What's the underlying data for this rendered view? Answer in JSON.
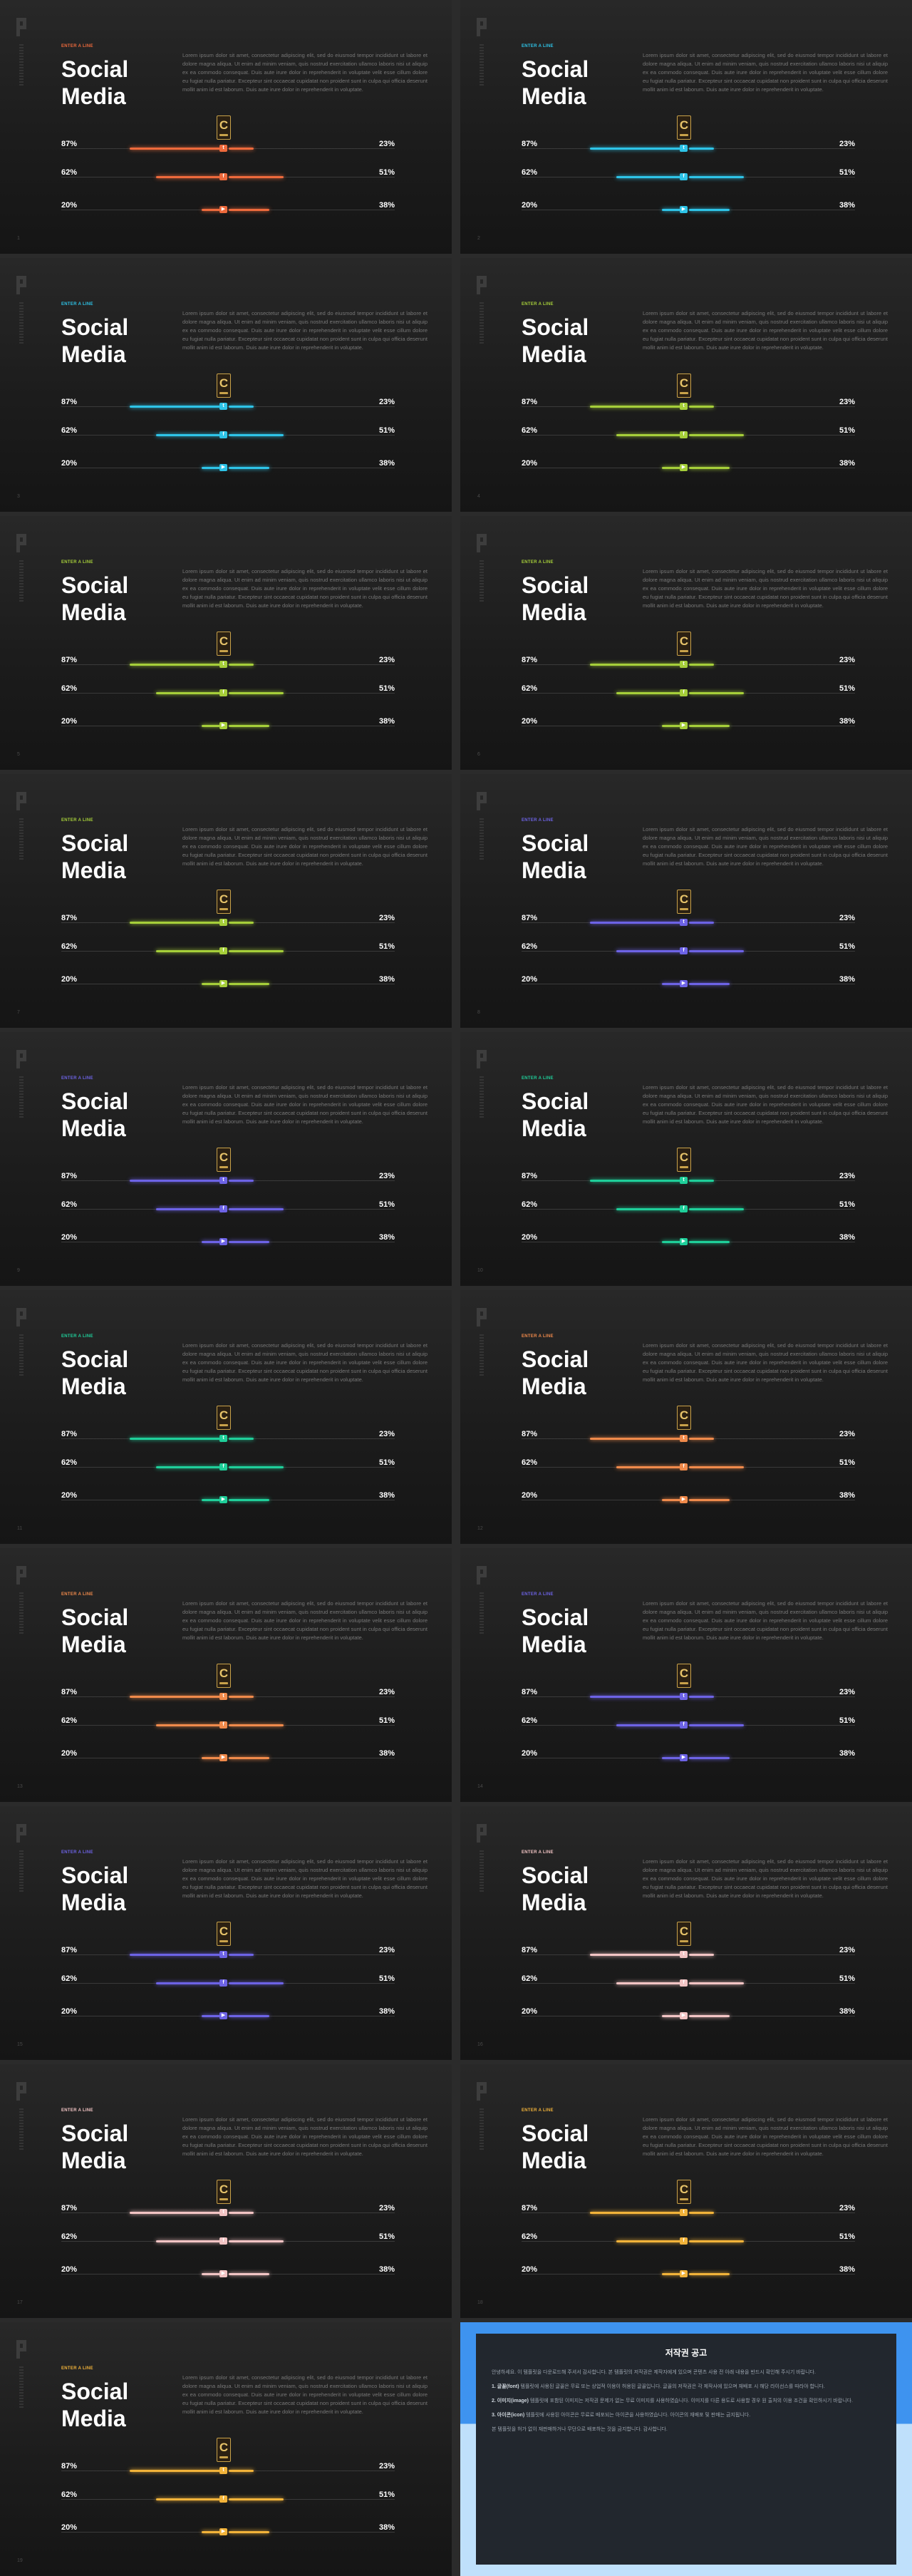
{
  "slide": {
    "category_label": "ENTER A LINE",
    "title_line1": "Social",
    "title_line2": "Media",
    "body": "Lorem ipsum dolor sit amet, consectetur adipiscing elit, sed do eiusmod tempor incididunt ut labore et dolore magna aliqua. Ut enim ad minim veniam, quis nostrud exercitation ullamco laboris nisi ut aliquip ex ea commodo consequat. Duis aute irure dolor in reprehenderit in voluptate velit esse cillum dolore eu fugiat nulla pariatur. Excepteur sint occaecat cupidatat non proident sunt in culpa qui officia deserunt mollit anim id est laborum. Duis aute irure dolor in reprehenderit in voluptate.",
    "crest_letter": "C",
    "rows": [
      {
        "left": "87%",
        "right": "23%",
        "left_share": 0.87,
        "right_share": 0.23,
        "icon": "twitter-icon",
        "glyph": "t"
      },
      {
        "left": "62%",
        "right": "51%",
        "left_share": 0.62,
        "right_share": 0.51,
        "icon": "facebook-icon",
        "glyph": "f"
      },
      {
        "left": "20%",
        "right": "38%",
        "left_share": 0.2,
        "right_share": 0.38,
        "icon": "youtube-icon",
        "glyph": "▶"
      }
    ]
  },
  "slides": [
    {
      "accent": "#ee6a3c",
      "page": "1"
    },
    {
      "accent": "#2ec4e8",
      "page": "2"
    },
    {
      "accent": "#2ec4e8",
      "page": "3"
    },
    {
      "accent": "#a6cf3a",
      "page": "4"
    },
    {
      "accent": "#a6cf3a",
      "page": "5"
    },
    {
      "accent": "#a6cf3a",
      "page": "6"
    },
    {
      "accent": "#a6cf3a",
      "page": "7"
    },
    {
      "accent": "#6d63e6",
      "page": "8"
    },
    {
      "accent": "#6d63e6",
      "page": "9"
    },
    {
      "accent": "#1fcf9a",
      "page": "10"
    },
    {
      "accent": "#1fcf9a",
      "page": "11"
    },
    {
      "accent": "#f08a4b",
      "page": "12"
    },
    {
      "accent": "#f08a4b",
      "page": "13"
    },
    {
      "accent": "#6d63e6",
      "page": "14"
    },
    {
      "accent": "#6d63e6",
      "page": "15"
    },
    {
      "accent": "#f2c4c4",
      "page": "16"
    },
    {
      "accent": "#f2c4c4",
      "page": "17"
    },
    {
      "accent": "#f2b33a",
      "page": "18"
    },
    {
      "accent": "#f2b33a",
      "page": "19"
    }
  ],
  "notice": {
    "title": "저작권 공고",
    "intro": "안녕하세요. 이 템플릿을 다운로드해 주셔서 감사합니다. 본 템플릿의 저작권은 제작자에게 있으며 콘텐츠 사용 전 아래 내용을 반드시 확인해 주시기 바랍니다.",
    "item1_head": "1. 글꼴(font)",
    "item1_body": "템플릿에 사용된 글꼴은 무료 또는 상업적 이용이 허용된 글꼴입니다. 글꼴의 저작권은 각 제작사에 있으며 재배포 시 해당 라이선스를 따라야 합니다.",
    "item2_head": "2. 이미지(image)",
    "item2_body": "템플릿에 포함된 이미지는 저작권 문제가 없는 무료 이미지를 사용하였습니다. 이미지를 다른 용도로 사용할 경우 원 출처의 이용 조건을 확인하시기 바랍니다.",
    "item3_head": "3. 아이콘(icon)",
    "item3_body": "템플릿에 사용된 아이콘은 무료로 배포되는 아이콘을 사용하였습니다. 아이콘의 재배포 및 판매는 금지됩니다.",
    "closing": "본 템플릿을 허가 없이 재판매하거나 무단으로 배포하는 것을 금지합니다. 감사합니다."
  }
}
